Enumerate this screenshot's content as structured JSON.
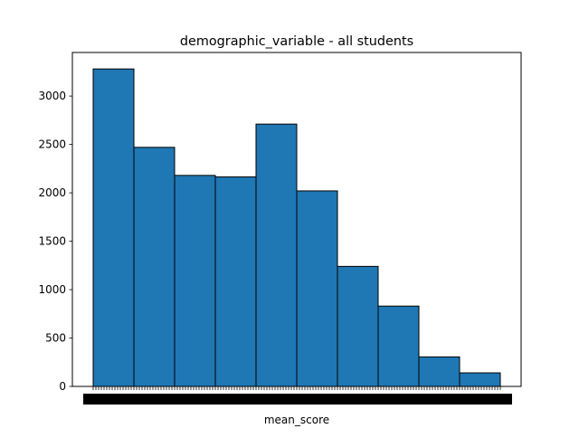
{
  "chart_data": {
    "type": "bar",
    "title": "demographic_variable - all students",
    "xlabel": "mean_score",
    "ylabel": "",
    "ylim": [
      0,
      3450
    ],
    "yticks": [
      0,
      500,
      1000,
      1500,
      2000,
      2500,
      3000
    ],
    "values": [
      3280,
      2470,
      2180,
      2165,
      2710,
      2020,
      1240,
      830,
      305,
      140
    ],
    "x_tick_labels_overlapping": true,
    "grid": false,
    "legend": "none",
    "colors": {
      "bar": "#1f77b4",
      "edge": "#000000"
    }
  }
}
